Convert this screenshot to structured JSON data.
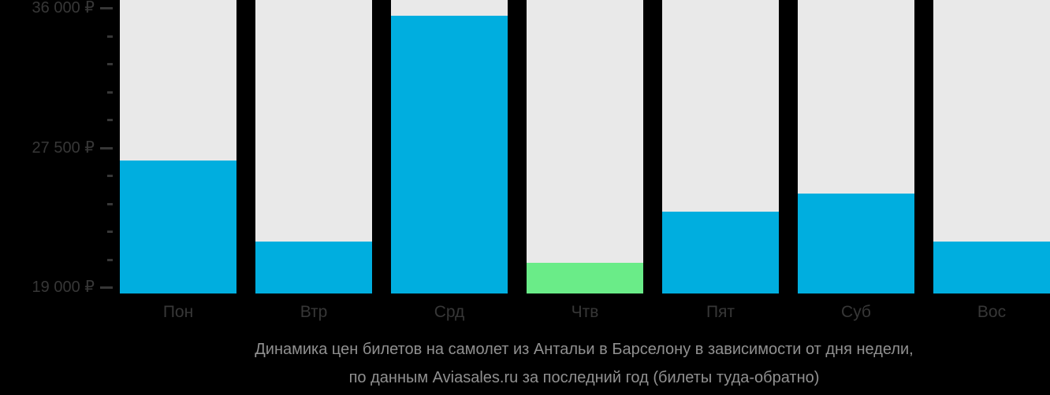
{
  "chart_data": {
    "type": "bar",
    "title": "Динамика цен билетов на самолет из Антальи в Барселону в зависимости от дня недели,",
    "subtitle": "по данным Aviasales.ru за последний год (билеты туда-обратно)",
    "categories": [
      "Пон",
      "Втр",
      "Срд",
      "Чтв",
      "Пят",
      "Суб",
      "Вос"
    ],
    "values": [
      26700,
      21800,
      35500,
      20500,
      23600,
      24700,
      21800
    ],
    "currency": "₽",
    "ylim": [
      19000,
      36000
    ],
    "xlabel": "",
    "ylabel": "",
    "grid": false,
    "legend_position": "none",
    "y_axis": {
      "major_ticks": [
        {
          "value": 36000,
          "label": "36 000 ₽"
        },
        {
          "value": 27500,
          "label": "27 500 ₽"
        },
        {
          "value": 19000,
          "label": "19 000 ₽"
        }
      ],
      "minor_step": 1700
    },
    "highlight": {
      "index": 3,
      "category": "Чтв",
      "meaning": "cheapest-day"
    },
    "colors": {
      "bar": "#00AEDF",
      "bar_highlight": "#6AEC88",
      "column_background": "#E9E9E9",
      "page_background": "#000000",
      "axis_text": "#373737",
      "caption_text": "#909090"
    }
  },
  "caption": {
    "line1": "Динамика цен билетов на самолет из Антальи в Барселону в зависимости от дня недели,",
    "line2": "по данным Aviasales.ru за последний год (билеты туда-обратно)"
  }
}
